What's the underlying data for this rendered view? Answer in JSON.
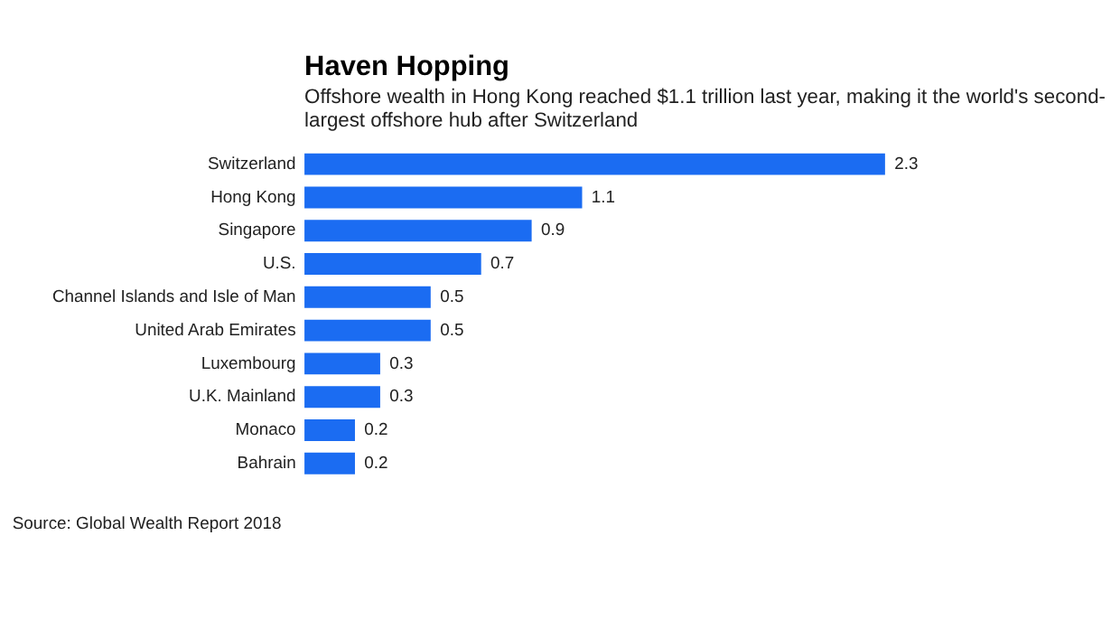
{
  "chart_data": {
    "type": "bar",
    "orientation": "horizontal",
    "title": "Haven Hopping",
    "subtitle": "Offshore wealth in Hong Kong reached $1.1 trillion last year, making it the world's second-largest offshore hub after Switzerland",
    "categories": [
      "Switzerland",
      "Hong Kong",
      "Singapore",
      "U.S.",
      "Channel Islands and Isle of Man",
      "United Arab Emirates",
      "Luxembourg",
      "U.K. Mainland",
      "Monaco",
      "Bahrain"
    ],
    "values": [
      2.3,
      1.1,
      0.9,
      0.7,
      0.5,
      0.5,
      0.3,
      0.3,
      0.2,
      0.2
    ],
    "color": "#1b6cf2",
    "data_labels": true,
    "tick_labels": "y",
    "annotations": [
      "Source: Global Wealth Report 2018"
    ]
  }
}
